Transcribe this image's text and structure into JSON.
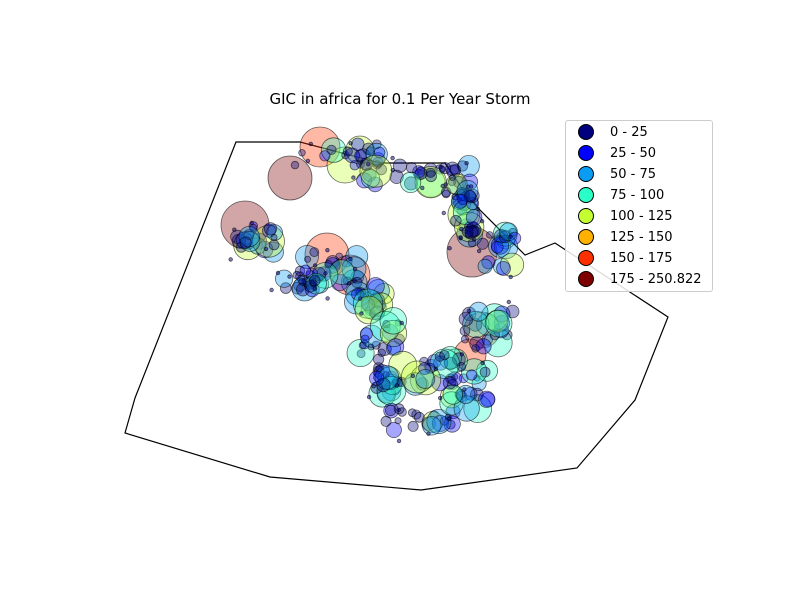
{
  "title": "GIC in africa for 0.1 Per Year Storm",
  "legend": {
    "entries": [
      {
        "label": "0 - 25",
        "color": "#00007f"
      },
      {
        "label": "25 - 50",
        "color": "#0000ff"
      },
      {
        "label": "50 - 75",
        "color": "#0a9cf2"
      },
      {
        "label": "75 - 100",
        "color": "#29ffc6"
      },
      {
        "label": "100 - 125",
        "color": "#c4ff32"
      },
      {
        "label": "125 - 150",
        "color": "#ffb000"
      },
      {
        "label": "150 - 175",
        "color": "#ff3000"
      },
      {
        "label": "175 - 250.822",
        "color": "#7f0000"
      }
    ]
  }
}
